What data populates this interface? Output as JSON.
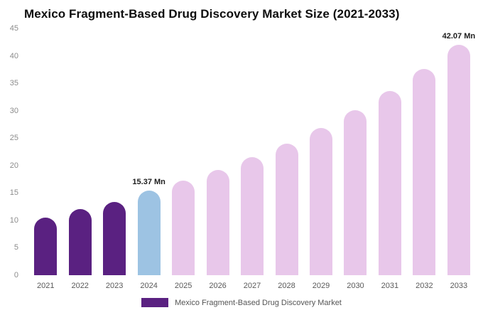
{
  "title": "Mexico Fragment-Based Drug Discovery Market Size (2021-2033)",
  "legend": {
    "label": "Mexico Fragment-Based Drug Discovery Market",
    "swatch_color": "#5a2181"
  },
  "colors": {
    "dark_purple": "#5a2181",
    "highlight_blue": "#9dc3e3",
    "forecast_pink": "#e8c7ea",
    "axis_text": "#8c8c8c",
    "tick_text": "#595959",
    "value_label_text": "#1c1c1c"
  },
  "chart_data": {
    "type": "bar",
    "title": "Mexico Fragment-Based Drug Discovery Market Size (2021-2033)",
    "xlabel": "",
    "ylabel": "",
    "unit": "Mn",
    "ylim": [
      0,
      45
    ],
    "yticks": [
      0,
      5,
      10,
      15,
      20,
      25,
      30,
      35,
      40,
      45
    ],
    "grid": false,
    "legend_position": "bottom",
    "categories": [
      "2021",
      "2022",
      "2023",
      "2024",
      "2025",
      "2026",
      "2027",
      "2028",
      "2029",
      "2030",
      "2031",
      "2032",
      "2033"
    ],
    "values": [
      10.5,
      12.0,
      13.4,
      15.37,
      17.2,
      19.2,
      21.5,
      24.0,
      26.9,
      30.1,
      33.6,
      37.6,
      42.07
    ],
    "value_labels": [
      "",
      "",
      "",
      "15.37 Mn",
      "",
      "",
      "",
      "",
      "",
      "",
      "",
      "",
      "42.07 Mn"
    ],
    "bar_colors": [
      "#5a2181",
      "#5a2181",
      "#5a2181",
      "#9dc3e3",
      "#e8c7ea",
      "#e8c7ea",
      "#e8c7ea",
      "#e8c7ea",
      "#e8c7ea",
      "#e8c7ea",
      "#e8c7ea",
      "#e8c7ea",
      "#e8c7ea"
    ],
    "annotations": [
      {
        "category": "2024",
        "text": "15.37 Mn"
      },
      {
        "category": "2033",
        "text": "42.07 Mn"
      }
    ]
  }
}
